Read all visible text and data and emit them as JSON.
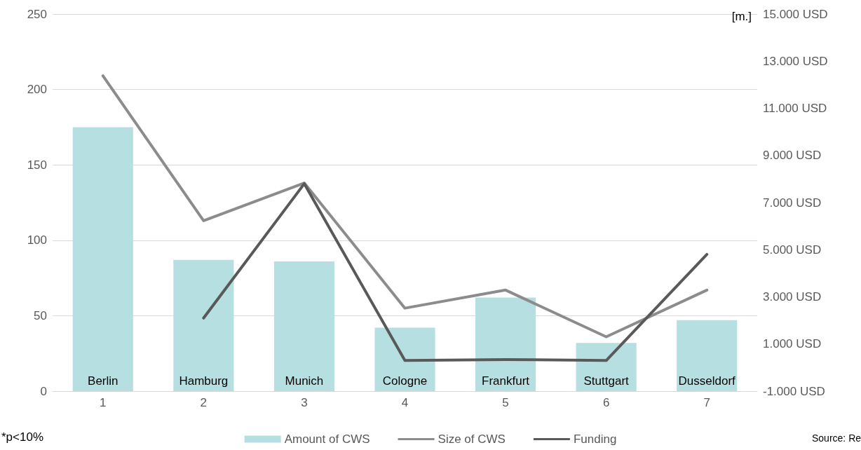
{
  "chart_data": {
    "type": "bar",
    "categories": [
      "1",
      "2",
      "3",
      "4",
      "5",
      "6",
      "7"
    ],
    "series": [
      {
        "name": "Amount of CWS",
        "color": "#b6dfe1",
        "values": [
          175,
          87,
          86,
          42,
          62,
          32,
          47
        ]
      },
      {
        "name": "Size of CWS",
        "type": "line",
        "color": "#8c8c8c",
        "values": [
          209,
          113,
          138,
          55,
          67,
          36,
          67
        ]
      },
      {
        "name": "Funding",
        "type": "line",
        "axis": "y2",
        "color": "#595959",
        "values": [
          null,
          2100,
          7800,
          300,
          340,
          300,
          4800
        ]
      }
    ],
    "ylim": [
      0,
      250
    ],
    "yticks": [
      0,
      50,
      100,
      150,
      200,
      250
    ],
    "y2lim": [
      -1000,
      15000
    ],
    "y2ticks": [
      {
        "value": -1000,
        "label": "-1.000 USD"
      },
      {
        "value": 1000,
        "label": "1.000 USD"
      },
      {
        "value": 3000,
        "label": "3.000 USD"
      },
      {
        "value": 5000,
        "label": "5.000 USD"
      },
      {
        "value": 7000,
        "label": "7.000 USD"
      },
      {
        "value": 9000,
        "label": "9.000 USD"
      },
      {
        "value": 11000,
        "label": "11.000 USD"
      },
      {
        "value": 13000,
        "label": "13.000 USD"
      },
      {
        "value": 15000,
        "label": "15.000 USD"
      }
    ],
    "y2label": "[m.]",
    "grid": "y",
    "legend": "bottom",
    "marker": "none",
    "line_style": "solid",
    "annotations": [
      {
        "text": "Berlin",
        "x": "1",
        "y": 0
      },
      {
        "text": "Hamburg",
        "x": "2",
        "y": 0
      },
      {
        "text": "Munich",
        "x": "3",
        "y": 0
      },
      {
        "text": "Cologne",
        "x": "4",
        "y": 0
      },
      {
        "text": "Frankfurt",
        "x": "5",
        "y": 0
      },
      {
        "text": "Stuttgart",
        "x": "6",
        "y": 0
      },
      {
        "text": "Dusseldorf",
        "x": "7",
        "y": 0
      },
      "*p<10%",
      "Source: Re"
    ]
  }
}
